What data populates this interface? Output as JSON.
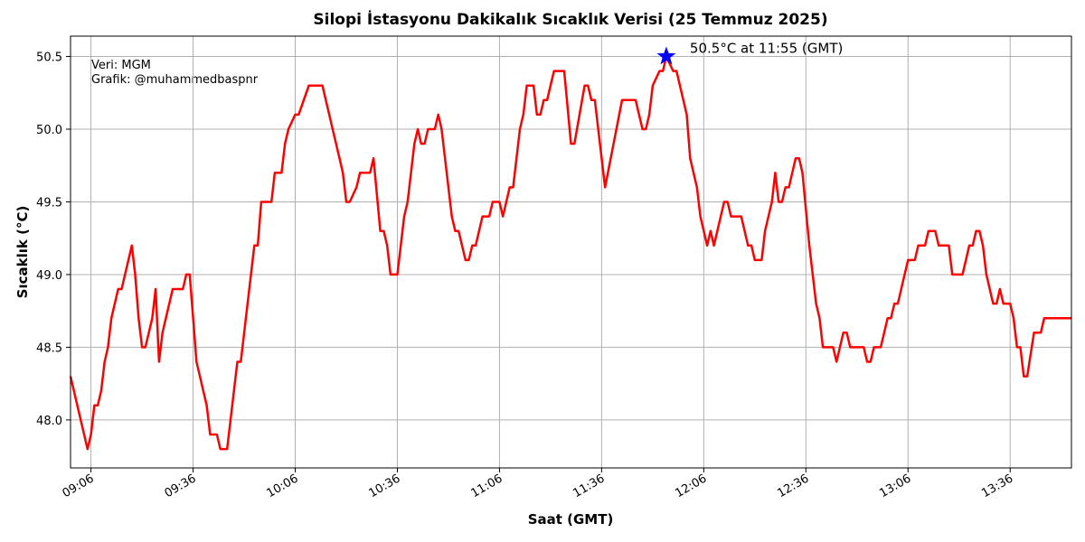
{
  "chart_data": {
    "type": "line",
    "title": "Silopi İstasyonu Dakikalık Sıcaklık Verisi (25 Temmuz 2025)",
    "x_label": "Saat (GMT)",
    "y_label": "Sıcaklık (°C)",
    "source_note": [
      "Veri: MGM",
      "Grafik: @muhammedbaspnr"
    ],
    "color": "red",
    "grid": true,
    "x": [
      "09:00",
      "09:05",
      "09:06",
      "09:07",
      "09:08",
      "09:09",
      "09:10",
      "09:11",
      "09:12",
      "09:14",
      "09:15",
      "09:18",
      "09:19",
      "09:20",
      "09:21",
      "09:22",
      "09:24",
      "09:25",
      "09:26",
      "09:27",
      "09:30",
      "09:33",
      "09:34",
      "09:35",
      "09:36",
      "09:37",
      "09:38",
      "09:40",
      "09:41",
      "09:43",
      "09:44",
      "09:46",
      "09:49",
      "09:50",
      "09:54",
      "09:55",
      "09:56",
      "09:59",
      "10:00",
      "10:02",
      "10:03",
      "10:04",
      "10:06",
      "10:07",
      "10:10",
      "10:14",
      "10:17",
      "10:19",
      "10:20",
      "10:21",
      "10:22",
      "10:24",
      "10:25",
      "10:28",
      "10:29",
      "10:31",
      "10:32",
      "10:33",
      "10:34",
      "10:36",
      "10:38",
      "10:39",
      "10:41",
      "10:42",
      "10:43",
      "10:44",
      "10:45",
      "10:47",
      "10:48",
      "10:49",
      "10:52",
      "10:53",
      "10:54",
      "10:56",
      "10:57",
      "10:58",
      "10:59",
      "11:01",
      "11:03",
      "11:04",
      "11:06",
      "11:07",
      "11:09",
      "11:10",
      "11:12",
      "11:13",
      "11:14",
      "11:16",
      "11:17",
      "11:18",
      "11:19",
      "11:20",
      "11:21",
      "11:22",
      "11:25",
      "11:27",
      "11:28",
      "11:31",
      "11:32",
      "11:33",
      "11:34",
      "11:36",
      "11:37",
      "11:42",
      "11:46",
      "11:48",
      "11:49",
      "11:50",
      "11:51",
      "11:53",
      "11:54",
      "11:55",
      "11:57",
      "11:58",
      "12:01",
      "12:02",
      "12:04",
      "12:05",
      "12:07",
      "12:08",
      "12:09",
      "12:12",
      "12:13",
      "12:14",
      "12:17",
      "12:19",
      "12:20",
      "12:21",
      "12:23",
      "12:24",
      "12:26",
      "12:27",
      "12:28",
      "12:29",
      "12:30",
      "12:31",
      "12:33",
      "12:34",
      "12:35",
      "12:37",
      "12:39",
      "12:40",
      "12:41",
      "12:44",
      "12:45",
      "12:47",
      "12:48",
      "12:49",
      "12:53",
      "12:54",
      "12:55",
      "12:56",
      "12:58",
      "13:00",
      "13:01",
      "13:02",
      "13:03",
      "13:05",
      "13:06",
      "13:08",
      "13:09",
      "13:11",
      "13:12",
      "13:14",
      "13:15",
      "13:18",
      "13:19",
      "13:22",
      "13:23",
      "13:24",
      "13:25",
      "13:26",
      "13:27",
      "13:28",
      "13:29",
      "13:31",
      "13:32",
      "13:33",
      "13:34",
      "13:36",
      "13:37",
      "13:38",
      "13:39",
      "13:40",
      "13:41",
      "13:43",
      "13:45",
      "13:46",
      "13:54"
    ],
    "values": [
      48.3,
      47.8,
      47.9,
      48.1,
      48.1,
      48.2,
      48.4,
      48.5,
      48.7,
      48.9,
      48.9,
      49.2,
      49.0,
      48.7,
      48.5,
      48.5,
      48.7,
      48.9,
      48.4,
      48.6,
      48.9,
      48.9,
      49.0,
      49.0,
      48.7,
      48.4,
      48.3,
      48.1,
      47.9,
      47.9,
      47.8,
      47.8,
      48.4,
      48.4,
      49.2,
      49.2,
      49.5,
      49.5,
      49.7,
      49.7,
      49.9,
      50.0,
      50.1,
      50.1,
      50.3,
      50.3,
      50.0,
      49.8,
      49.7,
      49.5,
      49.5,
      49.6,
      49.7,
      49.7,
      49.8,
      49.3,
      49.3,
      49.2,
      49.0,
      49.0,
      49.4,
      49.5,
      49.9,
      50.0,
      49.9,
      49.9,
      50.0,
      50.0,
      50.1,
      50.0,
      49.4,
      49.3,
      49.3,
      49.1,
      49.1,
      49.2,
      49.2,
      49.4,
      49.4,
      49.5,
      49.5,
      49.4,
      49.6,
      49.6,
      50.0,
      50.1,
      50.3,
      50.3,
      50.1,
      50.1,
      50.2,
      50.2,
      50.3,
      50.4,
      50.4,
      49.9,
      49.9,
      50.3,
      50.3,
      50.2,
      50.2,
      49.8,
      49.6,
      50.2,
      50.2,
      50.0,
      50.0,
      50.1,
      50.3,
      50.4,
      50.4,
      50.5,
      50.4,
      50.4,
      50.1,
      49.8,
      49.6,
      49.4,
      49.2,
      49.3,
      49.2,
      49.5,
      49.5,
      49.4,
      49.4,
      49.2,
      49.2,
      49.1,
      49.1,
      49.3,
      49.5,
      49.7,
      49.5,
      49.5,
      49.6,
      49.6,
      49.8,
      49.8,
      49.7,
      49.2,
      48.8,
      48.7,
      48.5,
      48.5,
      48.4,
      48.6,
      48.6,
      48.5,
      48.5,
      48.4,
      48.4,
      48.5,
      48.5,
      48.7,
      48.7,
      48.8,
      48.8,
      49.0,
      49.1,
      49.1,
      49.2,
      49.2,
      49.3,
      49.3,
      49.2,
      49.2,
      49.0,
      49.0,
      49.1,
      49.2,
      49.2,
      49.3,
      49.3,
      49.2,
      49.0,
      48.8,
      48.8,
      48.9,
      48.8,
      48.8,
      48.7,
      48.5,
      48.5,
      48.3,
      48.3,
      48.6,
      48.6,
      48.7,
      48.7
    ],
    "xlim": [
      "09:00",
      "13:54"
    ],
    "xticks": [
      "09:06",
      "09:36",
      "10:06",
      "10:36",
      "11:06",
      "11:36",
      "12:06",
      "12:36",
      "13:06",
      "13:36"
    ],
    "ylim": [
      47.67,
      50.64
    ],
    "yticks": [
      {
        "value": 48,
        "label": "48.0"
      },
      48.5,
      {
        "value": 49,
        "label": "49.0"
      },
      49.5,
      {
        "value": 50,
        "label": "50.0"
      },
      50.5
    ],
    "annotation": {
      "text": "50.5°C at 11:55 (GMT)",
      "x": "11:55",
      "y": 50.5,
      "marker_color": "blue"
    }
  }
}
